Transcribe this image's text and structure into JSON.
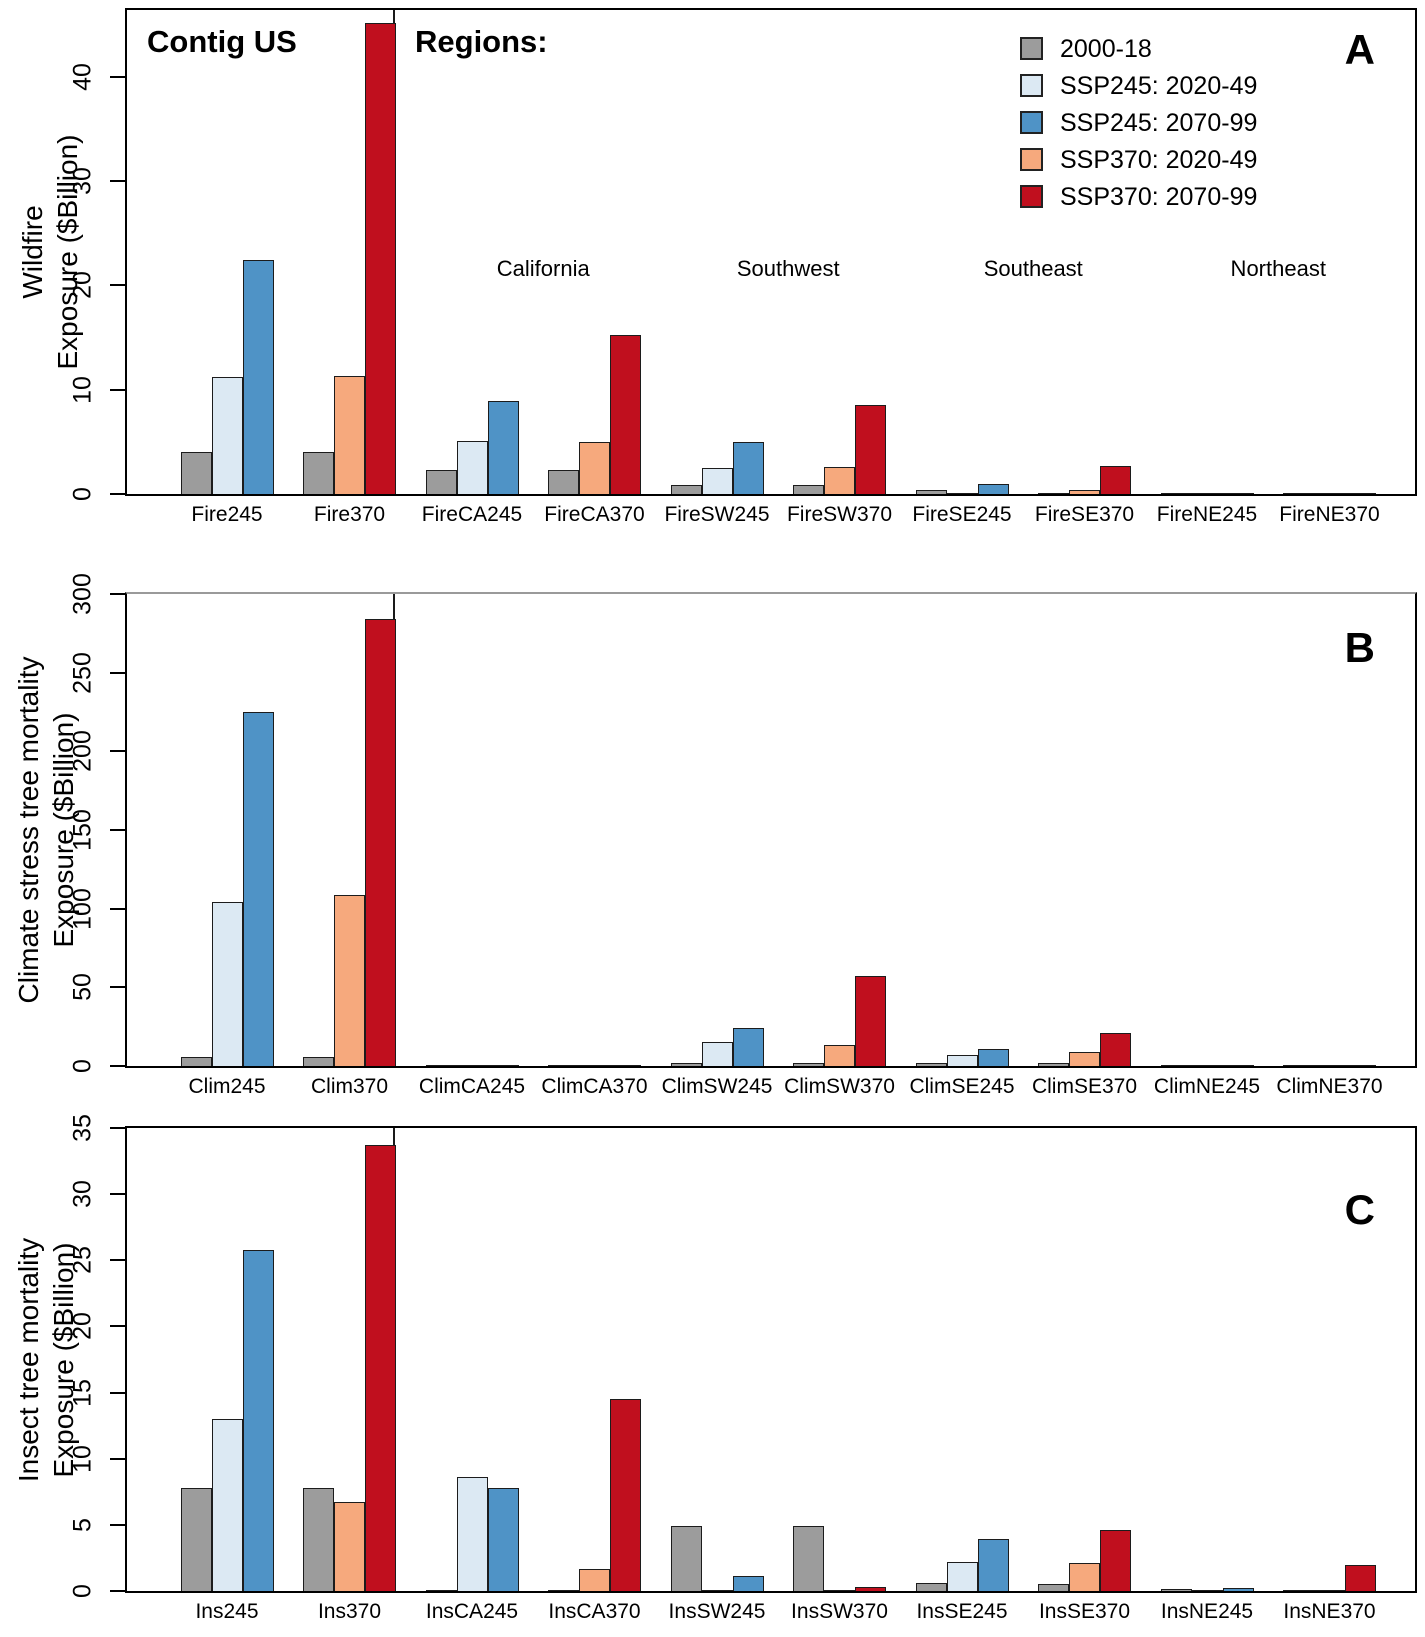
{
  "legend": {
    "items": [
      {
        "label": "2000-18",
        "color": "#9c9c9c"
      },
      {
        "label": "SSP245: 2020-49",
        "color": "#dce9f3"
      },
      {
        "label": "SSP245: 2070-99",
        "color": "#4f93c6"
      },
      {
        "label": "SSP370: 2020-49",
        "color": "#f6a97d"
      },
      {
        "label": "SSP370: 2070-99",
        "color": "#c00f1e"
      }
    ]
  },
  "panels": [
    {
      "letter": "A",
      "ylabel_line1": "Wildfire",
      "ylabel_line2": "Exposure ($Billion)",
      "header_left": "Contig US",
      "header_right": "Regions:",
      "region_labels": [
        "California",
        "Southwest",
        "Southeast",
        "Northeast"
      ]
    },
    {
      "letter": "B",
      "ylabel_line1": "Climate stress tree mortality",
      "ylabel_line2": "Exposure ($Billion)"
    },
    {
      "letter": "C",
      "ylabel_line1": "Insect tree mortality",
      "ylabel_line2": "Exposure ($Billion)"
    }
  ],
  "chart_data": [
    {
      "type": "bar",
      "title": "Wildfire Exposure",
      "ylabel": "Wildfire Exposure ($Billion)",
      "ylim": [
        0,
        46.4
      ],
      "yticks": [
        0,
        10,
        20,
        30,
        40
      ],
      "grid": false,
      "legend_position": "top-right",
      "series_legend": [
        "2000-18",
        "SSP245: 2020-49",
        "SSP245: 2070-99",
        "SSP370: 2020-49",
        "SSP370: 2070-99"
      ],
      "groups": [
        {
          "label": "Fire245",
          "bars": [
            {
              "series": 0,
              "value": 4.0
            },
            {
              "series": 1,
              "value": 11.2
            },
            {
              "series": 2,
              "value": 22.4
            }
          ]
        },
        {
          "label": "Fire370",
          "bars": [
            {
              "series": 0,
              "value": 4.0
            },
            {
              "series": 3,
              "value": 11.3
            },
            {
              "series": 4,
              "value": 45.2
            }
          ]
        },
        {
          "label": "FireCA245",
          "bars": [
            {
              "series": 0,
              "value": 2.3
            },
            {
              "series": 1,
              "value": 5.1
            },
            {
              "series": 2,
              "value": 8.9
            }
          ]
        },
        {
          "label": "FireCA370",
          "bars": [
            {
              "series": 0,
              "value": 2.3
            },
            {
              "series": 3,
              "value": 5.0
            },
            {
              "series": 4,
              "value": 15.2
            }
          ]
        },
        {
          "label": "FireSW245",
          "bars": [
            {
              "series": 0,
              "value": 0.85
            },
            {
              "series": 1,
              "value": 2.5
            },
            {
              "series": 2,
              "value": 4.95
            }
          ]
        },
        {
          "label": "FireSW370",
          "bars": [
            {
              "series": 0,
              "value": 0.85
            },
            {
              "series": 3,
              "value": 2.6
            },
            {
              "series": 4,
              "value": 8.5
            }
          ]
        },
        {
          "label": "FireSE245",
          "bars": [
            {
              "series": 0,
              "value": 0.35
            },
            {
              "series": 1,
              "value": 0.1
            },
            {
              "series": 2,
              "value": 1.0
            }
          ]
        },
        {
          "label": "FireSE370",
          "bars": [
            {
              "series": 0,
              "value": 0.05
            },
            {
              "series": 3,
              "value": 0.35
            },
            {
              "series": 4,
              "value": 2.7
            }
          ]
        },
        {
          "label": "FireNE245",
          "bars": [
            {
              "series": 0,
              "value": 0.02
            },
            {
              "series": 1,
              "value": 0.02
            },
            {
              "series": 2,
              "value": 0.04
            }
          ]
        },
        {
          "label": "FireNE370",
          "bars": [
            {
              "series": 0,
              "value": 0.02
            },
            {
              "series": 3,
              "value": 0.04
            },
            {
              "series": 4,
              "value": 0.12
            }
          ]
        }
      ]
    },
    {
      "type": "bar",
      "title": "Climate stress tree mortality Exposure",
      "ylabel": "Climate stress tree mortality Exposure ($Billion)",
      "ylim": [
        0,
        300
      ],
      "yticks": [
        0,
        50,
        100,
        150,
        200,
        250,
        300
      ],
      "grid": false,
      "groups": [
        {
          "label": "Clim245",
          "bars": [
            {
              "series": 0,
              "value": 5.5
            },
            {
              "series": 1,
              "value": 104
            },
            {
              "series": 2,
              "value": 225
            }
          ]
        },
        {
          "label": "Clim370",
          "bars": [
            {
              "series": 0,
              "value": 5.5
            },
            {
              "series": 3,
              "value": 109
            },
            {
              "series": 4,
              "value": 284
            }
          ]
        },
        {
          "label": "ClimCA245",
          "bars": [
            {
              "series": 0,
              "value": 0.7
            },
            {
              "series": 1,
              "value": 0.3
            },
            {
              "series": 2,
              "value": 0.4
            }
          ]
        },
        {
          "label": "ClimCA370",
          "bars": [
            {
              "series": 0,
              "value": 0.7
            },
            {
              "series": 3,
              "value": 0.3
            },
            {
              "series": 4,
              "value": 0.4
            }
          ]
        },
        {
          "label": "ClimSW245",
          "bars": [
            {
              "series": 0,
              "value": 2.0
            },
            {
              "series": 1,
              "value": 15.5
            },
            {
              "series": 2,
              "value": 24
            }
          ]
        },
        {
          "label": "ClimSW370",
          "bars": [
            {
              "series": 0,
              "value": 2.0
            },
            {
              "series": 3,
              "value": 13.5
            },
            {
              "series": 4,
              "value": 57
            }
          ]
        },
        {
          "label": "ClimSE245",
          "bars": [
            {
              "series": 0,
              "value": 2.0
            },
            {
              "series": 1,
              "value": 7.0
            },
            {
              "series": 2,
              "value": 11
            }
          ]
        },
        {
          "label": "ClimSE370",
          "bars": [
            {
              "series": 0,
              "value": 2.0
            },
            {
              "series": 3,
              "value": 9.0
            },
            {
              "series": 4,
              "value": 21
            }
          ]
        },
        {
          "label": "ClimNE245",
          "bars": [
            {
              "series": 0,
              "value": 0.7
            },
            {
              "series": 1,
              "value": 0.3
            },
            {
              "series": 2,
              "value": 0.4
            }
          ]
        },
        {
          "label": "ClimNE370",
          "bars": [
            {
              "series": 0,
              "value": 0.4
            },
            {
              "series": 3,
              "value": 0.3
            },
            {
              "series": 4,
              "value": 0.4
            }
          ]
        }
      ]
    },
    {
      "type": "bar",
      "title": "Insect tree mortality Exposure",
      "ylabel": "Insect tree mortality Exposure ($Billion)",
      "ylim": [
        0,
        35
      ],
      "yticks": [
        0,
        5,
        10,
        15,
        20,
        25,
        30,
        35
      ],
      "grid": false,
      "groups": [
        {
          "label": "Ins245",
          "bars": [
            {
              "series": 0,
              "value": 7.8
            },
            {
              "series": 1,
              "value": 13.0
            },
            {
              "series": 2,
              "value": 25.8
            }
          ]
        },
        {
          "label": "Ins370",
          "bars": [
            {
              "series": 0,
              "value": 7.8
            },
            {
              "series": 3,
              "value": 6.7
            },
            {
              "series": 4,
              "value": 33.7
            }
          ]
        },
        {
          "label": "InsCA245",
          "bars": [
            {
              "series": 0,
              "value": 0.06
            },
            {
              "series": 1,
              "value": 8.6
            },
            {
              "series": 2,
              "value": 7.8
            }
          ]
        },
        {
          "label": "InsCA370",
          "bars": [
            {
              "series": 0,
              "value": 0.06
            },
            {
              "series": 3,
              "value": 1.7
            },
            {
              "series": 4,
              "value": 14.5
            }
          ]
        },
        {
          "label": "InsSW245",
          "bars": [
            {
              "series": 0,
              "value": 4.9
            },
            {
              "series": 1,
              "value": 0.1
            },
            {
              "series": 2,
              "value": 1.1
            }
          ]
        },
        {
          "label": "InsSW370",
          "bars": [
            {
              "series": 0,
              "value": 4.9
            },
            {
              "series": 3,
              "value": 0.06
            },
            {
              "series": 4,
              "value": 0.3
            }
          ]
        },
        {
          "label": "InsSE245",
          "bars": [
            {
              "series": 0,
              "value": 0.6
            },
            {
              "series": 1,
              "value": 2.2
            },
            {
              "series": 2,
              "value": 3.9
            }
          ]
        },
        {
          "label": "InsSE370",
          "bars": [
            {
              "series": 0,
              "value": 0.55
            },
            {
              "series": 3,
              "value": 2.1
            },
            {
              "series": 4,
              "value": 4.6
            }
          ]
        },
        {
          "label": "InsNE245",
          "bars": [
            {
              "series": 0,
              "value": 0.12
            },
            {
              "series": 1,
              "value": 0.06
            },
            {
              "series": 2,
              "value": 0.2
            }
          ]
        },
        {
          "label": "InsNE370",
          "bars": [
            {
              "series": 0,
              "value": 0.06
            },
            {
              "series": 3,
              "value": 0.1
            },
            {
              "series": 4,
              "value": 2.0
            }
          ]
        }
      ]
    }
  ]
}
